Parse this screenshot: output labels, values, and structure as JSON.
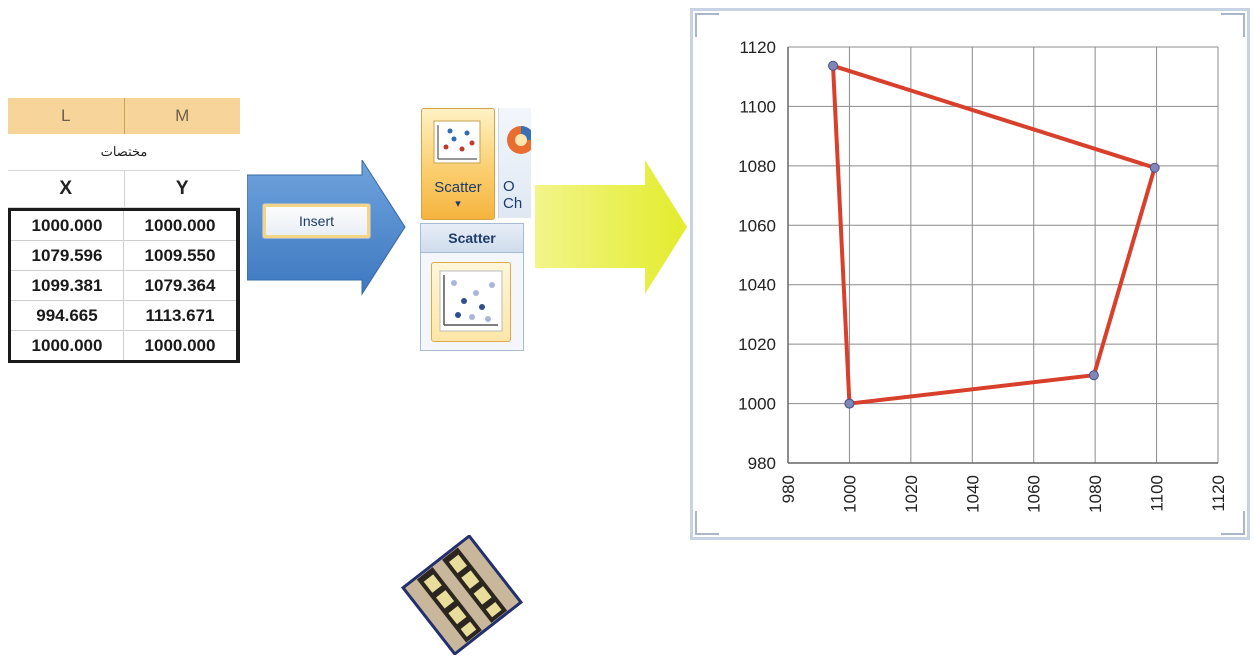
{
  "sheet": {
    "col_headers": [
      "L",
      "M"
    ],
    "title": "مختصات",
    "field_names": [
      "X",
      "Y"
    ],
    "rows": [
      [
        "1000.000",
        "1000.000"
      ],
      [
        "1079.596",
        "1009.550"
      ],
      [
        "1099.381",
        "1079.364"
      ],
      [
        "994.665",
        "1113.671"
      ],
      [
        "1000.000",
        "1000.000"
      ]
    ]
  },
  "insert_tab": "Insert",
  "ribbon": {
    "scatter_label": "Scatter",
    "caret": "▾",
    "other_charts_line1": "O",
    "other_charts_line2": "Ch",
    "menu_heading": "Scatter"
  },
  "colors": {
    "arrow_blue": "#4a86c8",
    "arrow_yellow": "#e8ef3a",
    "series_line": "#d9402b",
    "marker": "#7f86b8"
  },
  "icons": [
    "arrow-right-icon",
    "scatter-chart-icon",
    "pie-chart-icon",
    "film-strip-icon"
  ],
  "chart_data": {
    "type": "scatter",
    "title": "",
    "xlabel": "",
    "ylabel": "",
    "xlim": [
      980,
      1120
    ],
    "ylim": [
      980,
      1120
    ],
    "x_ticks": [
      "980",
      "1000",
      "1020",
      "1040",
      "1060",
      "1080",
      "1100",
      "1120"
    ],
    "y_ticks": [
      "980",
      "1000",
      "1020",
      "1040",
      "1060",
      "1080",
      "1100",
      "1120"
    ],
    "grid": true,
    "lines": true,
    "markers": true,
    "series": [
      {
        "x": [
          1000.0,
          1079.596,
          1099.381,
          994.665,
          1000.0
        ],
        "y": [
          1000.0,
          1009.55,
          1079.364,
          1113.671,
          1000.0
        ]
      }
    ]
  }
}
